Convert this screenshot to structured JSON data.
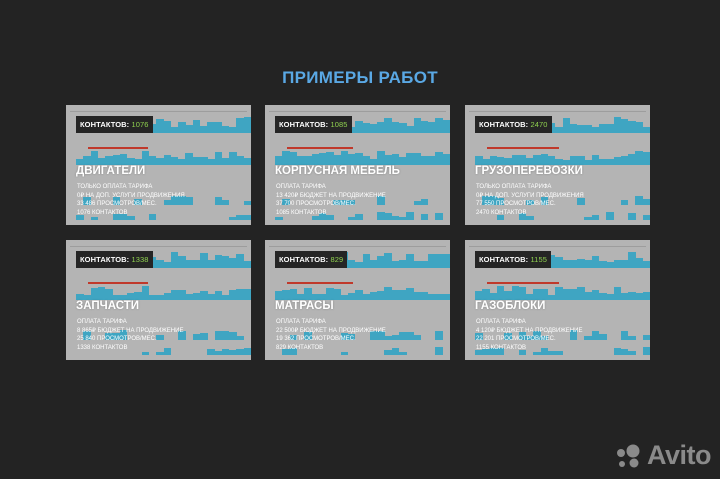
{
  "page": {
    "title": "ПРИМЕРЫ РАБОТ"
  },
  "colors": {
    "background": "#232323",
    "title": "#5aa8e4",
    "card": "#b4b4b4",
    "bars": "#3fa5c2",
    "count_accent": "#8fd14f",
    "arrow": "#c0392b"
  },
  "badge_label": "КОНТАКТОВ:",
  "cards": [
    {
      "count": "1076",
      "name": "ДВИГАТЕЛИ",
      "lines": [
        "ТОЛЬКО ОПЛАТА ТАРИФА",
        "0₽ НА ДОП. УСЛУГИ ПРОДВИЖЕНИЯ",
        "33 486 ПРОСМОТРОВ/МЕС.",
        "1076 КОНТАКТОВ"
      ]
    },
    {
      "count": "1085",
      "name": "КОРПУСНАЯ МЕБЕЛЬ",
      "lines": [
        "ОПЛАТА ТАРИФА",
        "13 420₽ БЮДЖЕТ НА ПРОДВИЖЕНИЕ",
        "37 700 ПРОСМОТРОВ/МЕС.",
        "1085 КОНТАКТОВ"
      ]
    },
    {
      "count": "2470",
      "name": "ГРУЗОПЕРЕВОЗКИ",
      "lines": [
        "ТОЛЬКО ОПЛАТА ТАРИФА",
        "0₽ НА ДОП. УСЛУГИ ПРОДВИЖЕНИЯ",
        "77 550 ПРОСМОТРОВ/МЕС.",
        "2470 КОНТАКТОВ"
      ]
    },
    {
      "count": "1338",
      "name": "ЗАПЧАСТИ",
      "lines": [
        "ОПЛАТА ТАРИФА",
        "8 865₽ БЮДЖЕТ НА ПРОДВИЖЕНИЕ",
        "25 840 ПРОСМОТРОВ/МЕС.",
        "1338 КОНТАКТОВ"
      ]
    },
    {
      "count": "829",
      "name": "МАТРАСЫ",
      "lines": [
        "ОПЛАТА ТАРИФА",
        "22 500₽ БЮДЖЕТ НА ПРОДВИЖЕНИЕ",
        "19 362 ПРОСМОТРОВ/МЕС.",
        "829 КОНТАКТОВ"
      ]
    },
    {
      "count": "1155",
      "name": "ГАЗОБЛОКИ",
      "lines": [
        "ОПЛАТА ТАРИФА",
        "4 120₽ БЮДЖЕТ НА ПРОДВИЖЕНИЕ",
        "22 201 ПРОСМОТРОВ/МЕС.",
        "1155 КОНТАКТОВ"
      ]
    }
  ],
  "logo": {
    "text": "Avito"
  }
}
